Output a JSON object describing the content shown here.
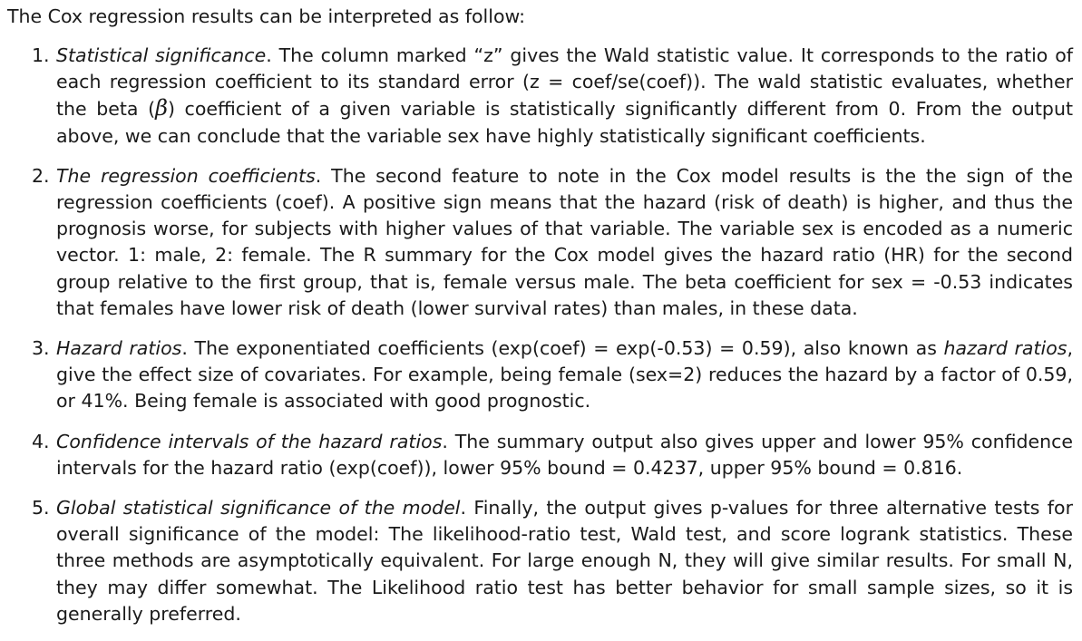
{
  "intro": "The Cox regression results can be interpreted as follow:",
  "items": [
    {
      "number": "1.",
      "lead": "Statistical significance",
      "text_a": ". The column marked “z” gives the Wald statistic value. It corresponds to the ratio of each regression coefficient to its standard error (z = coef/se(coef)). The wald statistic evaluates, whether the beta (",
      "symbol": "β",
      "text_b": ") coefficient of a given variable is statistically significantly different from 0. From the output above, we can conclude that the variable sex have highly statistically significant coefficients."
    },
    {
      "number": "2.",
      "lead": "The regression coefficients",
      "text": ". The second feature to note in the Cox model results is the the sign of the regression coefficients (coef). A positive sign means that the hazard (risk of death) is higher, and thus the prognosis worse, for subjects with higher values of that variable. The variable sex is encoded as a numeric vector. 1: male, 2: female. The R summary for the Cox model gives the hazard ratio (HR) for the second group relative to the first group, that is, female versus male. The beta coefficient for sex = -0.53 indicates that females have lower risk of death (lower survival rates) than males, in these data."
    },
    {
      "number": "3.",
      "lead": "Hazard ratios",
      "text_a": ". The exponentiated coefficients (exp(coef) = exp(-0.53) = 0.59), also known as ",
      "term": "hazard ratios",
      "text_b": ", give the effect size of covariates. For example, being female (sex=2) reduces the hazard by a factor of 0.59, or 41%. Being female is associated with good prognostic."
    },
    {
      "number": "4.",
      "lead": "Confidence intervals of the hazard ratios",
      "text": ". The summary output also gives upper and lower 95% confidence intervals for the hazard ratio (exp(coef)), lower 95% bound = 0.4237, upper 95% bound = 0.816."
    },
    {
      "number": "5.",
      "lead": "Global statistical significance of the model",
      "text": ". Finally, the output gives p-values for three alternative tests for overall significance of the model: The likelihood-ratio test, Wald test, and score logrank statistics. These three methods are asymptotically equivalent. For large enough N, they will give similar results. For small N, they may differ somewhat. The Likelihood ratio test has better behavior for small sample sizes, so it is generally preferred."
    }
  ]
}
